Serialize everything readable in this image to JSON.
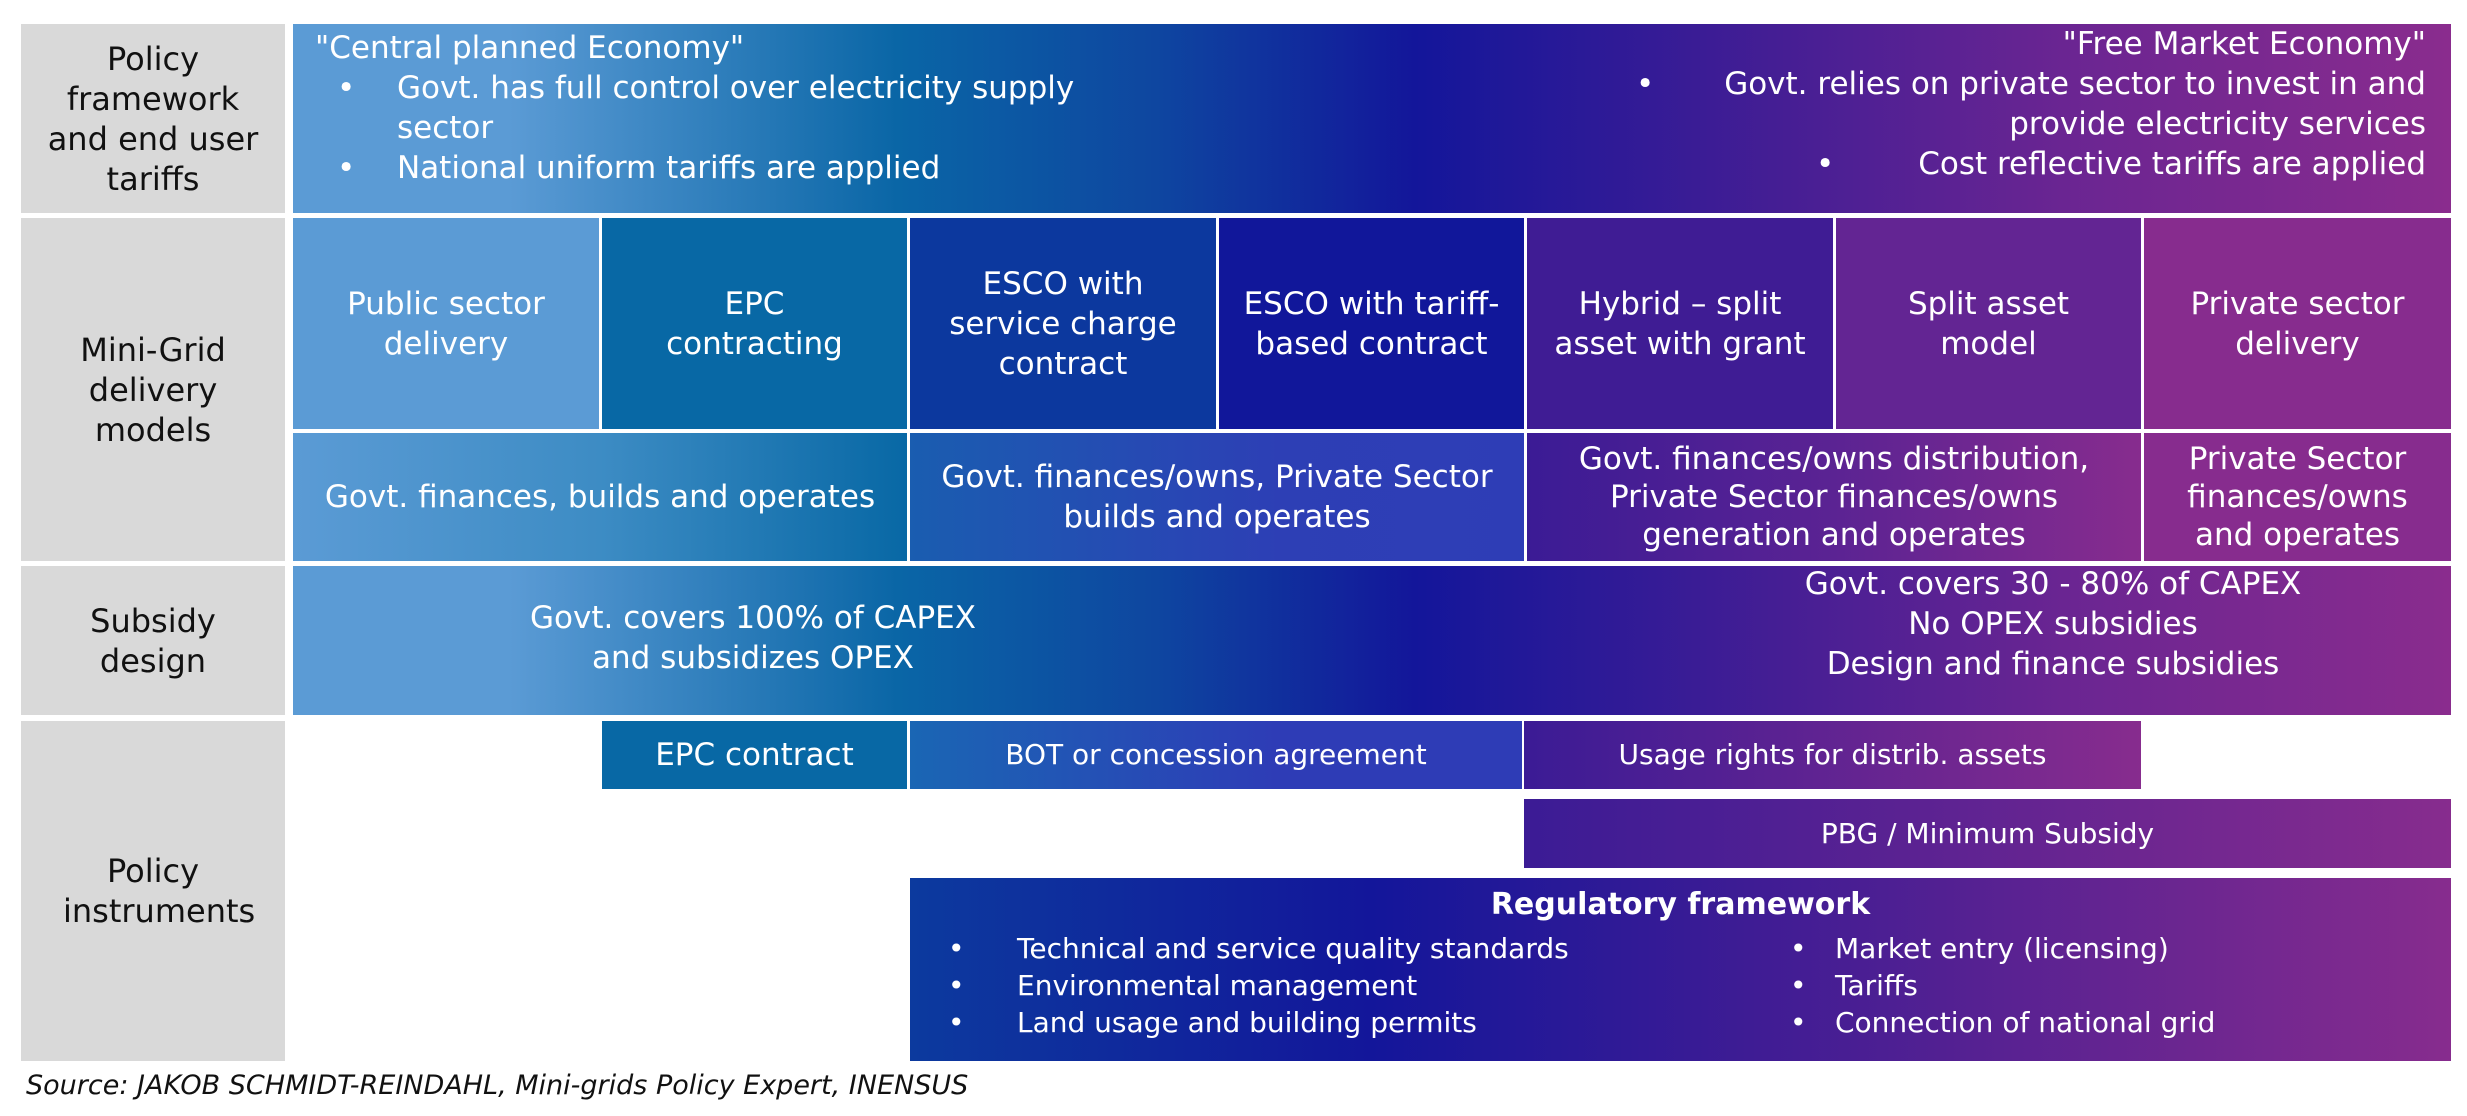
{
  "row_labels": {
    "policy_framework": "Policy framework and end user tariffs",
    "delivery_models": "Mini-Grid delivery models",
    "subsidy": "Subsidy design",
    "instruments": "Policy instruments"
  },
  "policy_framework": {
    "left_title": "\"Central planned Economy\"",
    "left_bullets": [
      "Govt. has full control over electricity supply sector",
      "National uniform tariffs are applied"
    ],
    "right_title": "\"Free Market Economy\"",
    "right_bullets": [
      "Govt. relies on private sector to invest in and provide electricity services",
      "Cost reflective tariffs are applied"
    ]
  },
  "delivery_models": {
    "models": [
      {
        "label": "Public sector delivery",
        "color": "#5b9bd5"
      },
      {
        "label": "EPC contracting",
        "color": "#0868a5"
      },
      {
        "label": "ESCO with service charge contract",
        "color": "#0c389e"
      },
      {
        "label": "ESCO with tariff-based contract",
        "color": "#11179a"
      },
      {
        "label": "Hybrid – split asset with grant",
        "color": "#3f1c94"
      },
      {
        "label": "Split asset model",
        "color": "#632593"
      },
      {
        "label": "Private sector delivery",
        "color": "#872c8e"
      }
    ],
    "ownership": [
      "Govt. finances, builds and operates",
      "Govt. finances/owns, Private Sector builds and operates",
      "Govt. finances/owns distribution, Private Sector finances/owns generation and operates",
      "Private Sector finances/owns and operates"
    ]
  },
  "subsidy": {
    "left": [
      "Govt. covers 100% of CAPEX",
      "and subsidizes OPEX"
    ],
    "right": [
      "Govt. covers 30 - 80% of CAPEX",
      "No OPEX subsidies",
      "Design and finance subsidies"
    ]
  },
  "instruments": {
    "epc": "EPC contract",
    "bot": "BOT or concession agreement",
    "usage": "Usage rights for distrib. assets",
    "pbg": "PBG / Minimum Subsidy",
    "regulatory": {
      "title": "Regulatory framework",
      "left": [
        "Technical and service quality standards",
        "Environmental management",
        "Land usage and building permits"
      ],
      "right": [
        "Market entry (licensing)",
        "Tariffs",
        "Connection of national grid"
      ]
    }
  },
  "source": "Source: JAKOB SCHMIDT-REINDAHL, Mini-grids Policy Expert, INENSUS",
  "colors": {
    "light_blue": "#5b9bd5",
    "teal": "#0868a5",
    "dark_blue": "#13169a",
    "purple": "#8a2c8e",
    "label_gray": "#d9d9d9"
  }
}
